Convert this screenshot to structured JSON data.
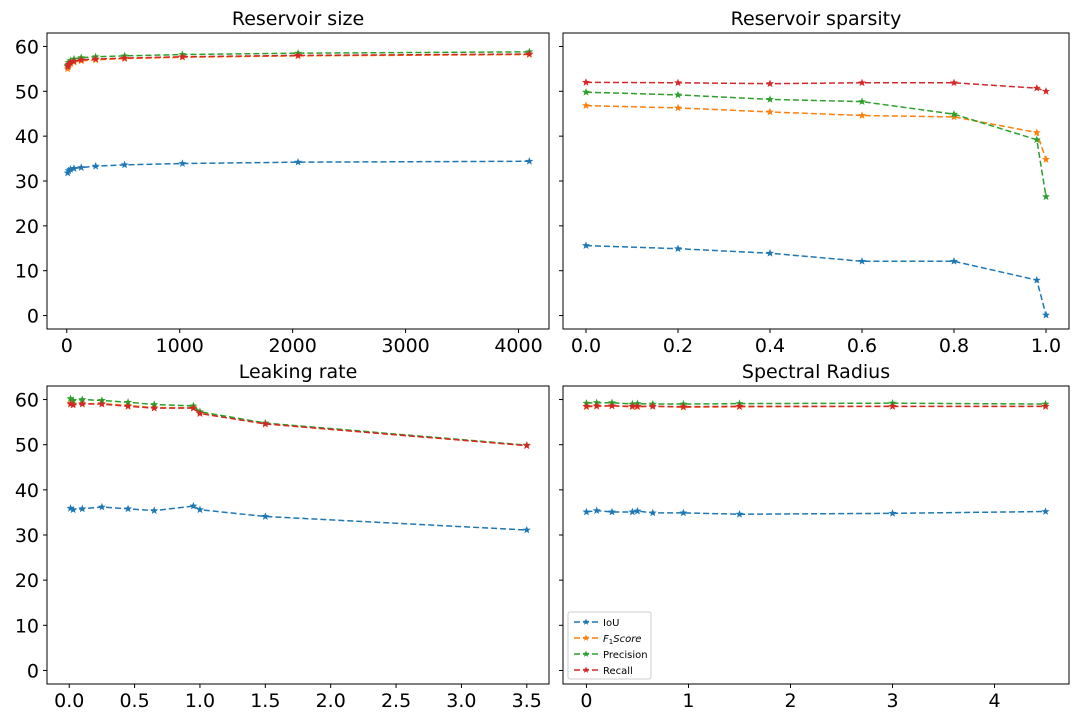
{
  "chart_data": [
    {
      "type": "line",
      "title": "Reservoir size",
      "xlabel": "",
      "ylabel": "",
      "xlim": [
        -175,
        4270
      ],
      "ylim": [
        -3,
        63
      ],
      "xticks": [
        0,
        1000,
        2000,
        3000,
        4000
      ],
      "xtick_labels": [
        "0",
        "1000",
        "2000",
        "3000",
        "4000"
      ],
      "yticks": [
        0,
        10,
        20,
        30,
        40,
        50,
        60
      ],
      "ytick_labels": [
        "0",
        "10",
        "20",
        "30",
        "40",
        "50",
        "60"
      ],
      "show_ytick_labels": true,
      "grid": false,
      "x": [
        8,
        16,
        32,
        64,
        128,
        256,
        512,
        1024,
        2048,
        4096
      ],
      "series": [
        {
          "name": "IoU",
          "color": "#1f77b4",
          "values": [
            31.8,
            32.3,
            32.6,
            32.8,
            33.0,
            33.3,
            33.6,
            33.9,
            34.2,
            34.4
          ]
        },
        {
          "name": "F1Score",
          "color": "#ff7f0e",
          "values": [
            55.0,
            55.6,
            56.1,
            56.5,
            56.8,
            57.0,
            57.3,
            57.6,
            57.9,
            58.2
          ]
        },
        {
          "name": "Precision",
          "color": "#2ca02c",
          "values": [
            55.8,
            56.4,
            56.8,
            57.2,
            57.5,
            57.7,
            57.9,
            58.2,
            58.5,
            58.8
          ]
        },
        {
          "name": "Recall",
          "color": "#d62728",
          "values": [
            55.5,
            56.0,
            56.4,
            56.7,
            57.0,
            57.2,
            57.4,
            57.7,
            58.0,
            58.3
          ]
        }
      ]
    },
    {
      "type": "line",
      "title": "Reservoir sparsity",
      "xlabel": "",
      "ylabel": "",
      "xlim": [
        -0.05,
        1.05
      ],
      "ylim": [
        -3,
        63
      ],
      "xticks": [
        0.0,
        0.2,
        0.4,
        0.6,
        0.8,
        1.0
      ],
      "xtick_labels": [
        "0.0",
        "0.2",
        "0.4",
        "0.6",
        "0.8",
        "1.0"
      ],
      "yticks": [
        0,
        10,
        20,
        30,
        40,
        50,
        60
      ],
      "ytick_labels": [
        "0",
        "10",
        "20",
        "30",
        "40",
        "50",
        "60"
      ],
      "show_ytick_labels": false,
      "grid": false,
      "x": [
        0.0,
        0.2,
        0.4,
        0.6,
        0.8,
        0.98,
        1.0
      ],
      "series": [
        {
          "name": "IoU",
          "color": "#1f77b4",
          "values": [
            15.6,
            14.9,
            13.9,
            12.1,
            12.1,
            7.9,
            0.1
          ]
        },
        {
          "name": "F1Score",
          "color": "#ff7f0e",
          "values": [
            46.8,
            46.3,
            45.4,
            44.6,
            44.3,
            40.8,
            34.8
          ]
        },
        {
          "name": "Precision",
          "color": "#2ca02c",
          "values": [
            49.8,
            49.2,
            48.2,
            47.7,
            44.9,
            39.2,
            26.5
          ]
        },
        {
          "name": "Recall",
          "color": "#d62728",
          "values": [
            52.0,
            51.9,
            51.7,
            51.9,
            51.9,
            50.7,
            50.0
          ]
        }
      ]
    },
    {
      "type": "line",
      "title": "Leaking rate",
      "xlabel": "",
      "ylabel": "",
      "xlim": [
        -0.17,
        3.67
      ],
      "ylim": [
        -3,
        63
      ],
      "xticks": [
        0.0,
        0.5,
        1.0,
        1.5,
        2.0,
        2.5,
        3.0,
        3.5
      ],
      "xtick_labels": [
        "0.0",
        "0.5",
        "1.0",
        "1.5",
        "2.0",
        "2.5",
        "3.0",
        "3.5"
      ],
      "yticks": [
        0,
        10,
        20,
        30,
        40,
        50,
        60
      ],
      "ytick_labels": [
        "0",
        "10",
        "20",
        "30",
        "40",
        "50",
        "60"
      ],
      "show_ytick_labels": true,
      "grid": false,
      "x": [
        0.01,
        0.03,
        0.1,
        0.25,
        0.45,
        0.65,
        0.95,
        1.0,
        1.5,
        3.5
      ],
      "series": [
        {
          "name": "IoU",
          "color": "#1f77b4",
          "values": [
            35.9,
            35.6,
            35.8,
            36.2,
            35.8,
            35.4,
            36.4,
            35.6,
            34.1,
            31.1
          ]
        },
        {
          "name": "F1Score",
          "color": "#ff7f0e",
          "values": [
            59.2,
            59.0,
            59.1,
            59.1,
            58.7,
            58.2,
            58.2,
            57.0,
            54.6,
            49.8
          ]
        },
        {
          "name": "Precision",
          "color": "#2ca02c",
          "values": [
            60.2,
            59.8,
            60.0,
            59.8,
            59.4,
            58.9,
            58.6,
            57.3,
            54.8,
            49.9
          ]
        },
        {
          "name": "Recall",
          "color": "#d62728",
          "values": [
            59.0,
            58.8,
            59.0,
            59.0,
            58.5,
            58.1,
            58.1,
            56.9,
            54.6,
            49.8
          ]
        }
      ]
    },
    {
      "type": "line",
      "title": "Spectral Radius",
      "xlabel": "",
      "ylabel": "",
      "xlim": [
        -0.23,
        4.73
      ],
      "ylim": [
        -3,
        63
      ],
      "xticks": [
        0,
        1,
        2,
        3,
        4
      ],
      "xtick_labels": [
        "0",
        "1",
        "2",
        "3",
        "4"
      ],
      "yticks": [
        0,
        10,
        20,
        30,
        40,
        50,
        60
      ],
      "ytick_labels": [
        "0",
        "10",
        "20",
        "30",
        "40",
        "50",
        "60"
      ],
      "show_ytick_labels": false,
      "grid": false,
      "legend": "lower left",
      "x": [
        0.0,
        0.1,
        0.25,
        0.45,
        0.5,
        0.65,
        0.95,
        1.5,
        3.0,
        4.5
      ],
      "series": [
        {
          "name": "IoU",
          "color": "#1f77b4",
          "values": [
            35.1,
            35.4,
            35.1,
            35.1,
            35.3,
            34.9,
            34.9,
            34.6,
            34.8,
            35.2
          ]
        },
        {
          "name": "F1Score",
          "color": "#ff7f0e",
          "values": [
            58.4,
            58.5,
            58.6,
            58.4,
            58.4,
            58.5,
            58.3,
            58.4,
            58.5,
            58.5
          ]
        },
        {
          "name": "Precision",
          "color": "#2ca02c",
          "values": [
            59.2,
            59.3,
            59.3,
            59.0,
            59.1,
            59.0,
            59.0,
            59.1,
            59.2,
            59.0
          ]
        },
        {
          "name": "Recall",
          "color": "#d62728",
          "values": [
            58.5,
            58.6,
            58.6,
            58.5,
            58.5,
            58.5,
            58.4,
            58.5,
            58.5,
            58.5
          ]
        }
      ]
    }
  ],
  "legend": {
    "items": [
      {
        "label": "IoU",
        "color": "#1f77b4",
        "italic": false
      },
      {
        "label": "F",
        "sub": "1",
        "suffix": "Score",
        "color": "#ff7f0e",
        "italic": true
      },
      {
        "label": "Precision",
        "color": "#2ca02c",
        "italic": false
      },
      {
        "label": "Recall",
        "color": "#d62728",
        "italic": false
      }
    ]
  }
}
